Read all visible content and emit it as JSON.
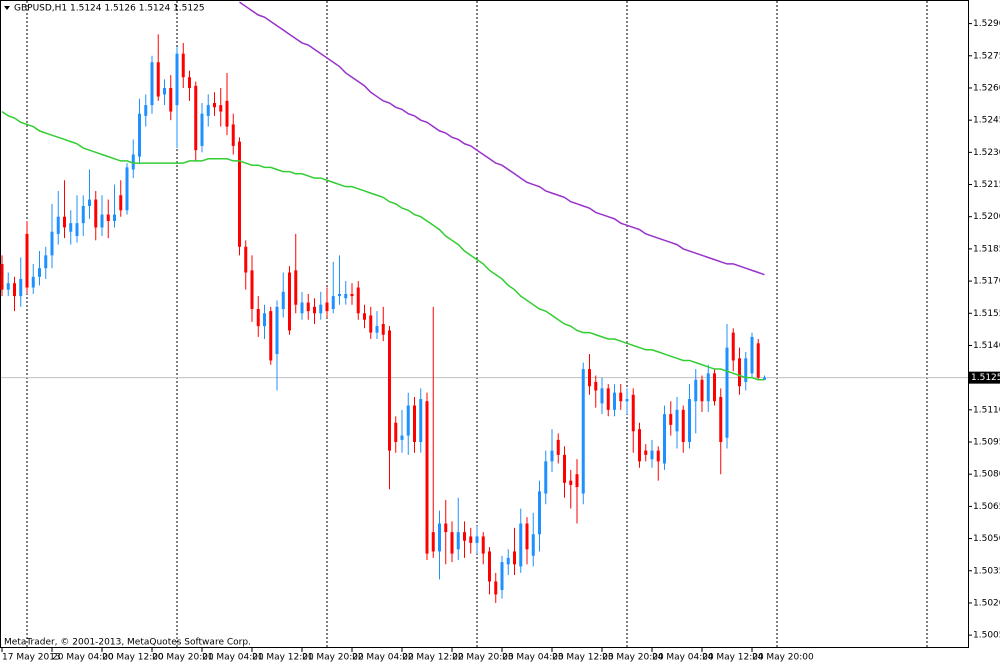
{
  "chart_data": {
    "type": "candlestick",
    "title": "GBPUSD,H1  1.5124 1.5126 1.5124 1.5125",
    "footer": "MetaTrader, © 2001-2013, MetaQuotes Software Corp.",
    "categories": [
      "17 May 2013",
      null,
      null,
      null,
      null,
      null,
      null,
      null,
      "20 May 04:00",
      null,
      null,
      null,
      null,
      null,
      null,
      null,
      "20 May 12:00",
      null,
      null,
      null,
      null,
      null,
      null,
      null,
      "20 May 20:00",
      null,
      null,
      null,
      null,
      null,
      null,
      null,
      "21 May 04:00",
      null,
      null,
      null,
      null,
      null,
      null,
      null,
      "21 May 12:00",
      null,
      null,
      null,
      null,
      null,
      null,
      null,
      "21 May 20:00",
      null,
      null,
      null,
      null,
      null,
      null,
      null,
      "22 May 04:00",
      null,
      null,
      null,
      null,
      null,
      null,
      null,
      "22 May 12:00",
      null,
      null,
      null,
      null,
      null,
      null,
      null,
      "22 May 20:00",
      null,
      null,
      null,
      null,
      null,
      null,
      null,
      "23 May 04:00",
      null,
      null,
      null,
      null,
      null,
      null,
      null,
      "23 May 12:00",
      null,
      null,
      null,
      null,
      null,
      null,
      null,
      "23 May 20:00",
      null,
      null,
      null,
      null,
      null,
      null,
      null,
      "24 May 04:00",
      null,
      null,
      null,
      null,
      null,
      null,
      null,
      "24 May 12:00",
      null,
      null,
      null,
      null,
      null,
      null,
      null,
      "24 May 20:00",
      null,
      null
    ],
    "open": [
      1.5178,
      1.5166,
      1.5169,
      1.5163,
      1.5192,
      1.5167,
      1.5172,
      1.5176,
      1.5182,
      1.5192,
      1.52,
      1.5193,
      1.5191,
      1.5197,
      1.5205,
      1.5208,
      1.5195,
      1.5201,
      1.5198,
      1.521,
      1.5203,
      1.5222,
      1.5228,
      1.5247,
      1.5252,
      1.5272,
      1.5257,
      1.526,
      1.5252,
      1.5276,
      1.5265,
      1.5261,
      1.5233,
      1.5247,
      1.5253,
      1.5252,
      1.5254,
      1.5243,
      1.5235,
      1.5186,
      1.5175,
      1.5157,
      1.5149,
      1.5156,
      1.5136,
      1.5157,
      1.5174,
      1.5175,
      1.5155,
      1.516,
      1.5158,
      1.5155,
      1.516,
      1.5157,
      1.5163,
      1.5162,
      1.5164,
      1.5167,
      1.5155,
      1.5154,
      1.5146,
      1.515,
      1.5147,
      1.5104,
      1.5096,
      1.5098,
      1.5112,
      1.5095,
      1.5114,
      1.5053,
      1.5044,
      1.5057,
      1.5053,
      1.5045,
      1.5053,
      1.5051,
      1.5048,
      1.5051,
      1.5044,
      1.503,
      1.5026,
      1.5038,
      1.5044,
      1.5037,
      1.5057,
      1.5042,
      1.5052,
      1.5071,
      1.5086,
      1.5096,
      1.5089,
      1.5077,
      1.508,
      1.5071,
      1.5129,
      1.5123,
      1.5113,
      1.512,
      1.511,
      1.5118,
      1.5114,
      1.5117,
      1.5101,
      1.5091,
      1.5087,
      1.5091,
      1.5085,
      1.5108,
      1.51,
      1.511,
      1.5095,
      1.5114,
      1.5124,
      1.5114,
      1.5127,
      1.5116,
      1.5097,
      1.5146,
      1.5134,
      1.5123,
      1.5127,
      1.5141,
      1.5124
    ],
    "high": [
      1.5182,
      1.5174,
      1.5172,
      1.5181,
      1.5198,
      1.5178,
      1.5184,
      1.5186,
      1.5206,
      1.5212,
      1.5217,
      1.5203,
      1.521,
      1.521,
      1.5222,
      1.5212,
      1.521,
      1.5208,
      1.5215,
      1.5217,
      1.5225,
      1.5236,
      1.5255,
      1.5257,
      1.5275,
      1.5285,
      1.5264,
      1.5266,
      1.5279,
      1.5281,
      1.5268,
      1.5263,
      1.5253,
      1.5257,
      1.5258,
      1.526,
      1.5267,
      1.5248,
      1.5237,
      1.5189,
      1.5182,
      1.5163,
      1.5159,
      1.5158,
      1.5161,
      1.5174,
      1.5177,
      1.5192,
      1.5165,
      1.5164,
      1.5162,
      1.5165,
      1.5167,
      1.5179,
      1.5182,
      1.517,
      1.5169,
      1.517,
      1.5159,
      1.5158,
      1.5156,
      1.5158,
      1.5149,
      1.5107,
      1.511,
      1.5118,
      1.5116,
      1.512,
      1.5118,
      1.5158,
      1.5063,
      1.5068,
      1.5058,
      1.5069,
      1.5058,
      1.5055,
      1.5056,
      1.5053,
      1.5046,
      1.5034,
      1.5042,
      1.5045,
      1.5055,
      1.5064,
      1.506,
      1.5062,
      1.5077,
      1.5091,
      1.5101,
      1.5099,
      1.5093,
      1.5082,
      1.5087,
      1.5132,
      1.5136,
      1.5126,
      1.5125,
      1.5122,
      1.5122,
      1.5122,
      1.512,
      1.512,
      1.5104,
      1.5094,
      1.5096,
      1.5093,
      1.5112,
      1.5114,
      1.5116,
      1.5112,
      1.5122,
      1.5129,
      1.5126,
      1.5131,
      1.5129,
      1.512,
      1.515,
      1.5148,
      1.5139,
      1.5137,
      1.5146,
      1.5143,
      1.5126
    ],
    "low": [
      1.5163,
      1.5163,
      1.5156,
      1.5158,
      1.5164,
      1.5164,
      1.5168,
      1.5171,
      1.5176,
      1.5187,
      1.519,
      1.5187,
      1.5188,
      1.5191,
      1.5199,
      1.5189,
      1.5191,
      1.519,
      1.5195,
      1.52,
      1.5201,
      1.5218,
      1.5225,
      1.5242,
      1.5248,
      1.5254,
      1.5252,
      1.5245,
      1.5232,
      1.526,
      1.5254,
      1.5226,
      1.523,
      1.5242,
      1.5247,
      1.5242,
      1.5238,
      1.5229,
      1.5182,
      1.5166,
      1.5151,
      1.5144,
      1.5143,
      1.5131,
      1.5119,
      1.5153,
      1.5145,
      1.5155,
      1.5152,
      1.5152,
      1.515,
      1.5152,
      1.5153,
      1.5155,
      1.5159,
      1.5159,
      1.5159,
      1.5152,
      1.5148,
      1.5143,
      1.5143,
      1.5142,
      1.5073,
      1.509,
      1.509,
      1.5089,
      1.509,
      1.509,
      1.504,
      1.5041,
      1.5031,
      1.5038,
      1.5039,
      1.504,
      1.5041,
      1.5043,
      1.5043,
      1.5038,
      1.5024,
      1.502,
      1.5022,
      1.5033,
      1.5033,
      1.5034,
      1.5038,
      1.5037,
      1.5044,
      1.5066,
      1.5081,
      1.5085,
      1.5069,
      1.5064,
      1.5057,
      1.5066,
      1.5117,
      1.5111,
      1.5108,
      1.5107,
      1.5107,
      1.511,
      1.5108,
      1.509,
      1.5083,
      1.5086,
      1.5083,
      1.5077,
      1.5082,
      1.5098,
      1.5092,
      1.509,
      1.5092,
      1.5099,
      1.5109,
      1.5109,
      1.5112,
      1.508,
      1.5092,
      1.5128,
      1.5117,
      1.5119,
      1.5125,
      1.5124,
      1.5124
    ],
    "close": [
      1.5166,
      1.5169,
      1.5163,
      1.5171,
      1.5167,
      1.5172,
      1.5176,
      1.5182,
      1.5193,
      1.52,
      1.5195,
      1.5197,
      1.5197,
      1.5205,
      1.5208,
      1.5195,
      1.5201,
      1.5198,
      1.5201,
      1.5203,
      1.5223,
      1.5229,
      1.5248,
      1.5252,
      1.5272,
      1.5256,
      1.526,
      1.5249,
      1.5276,
      1.5265,
      1.526,
      1.5231,
      1.5248,
      1.5252,
      1.5251,
      1.5249,
      1.5242,
      1.5233,
      1.5186,
      1.5174,
      1.5157,
      1.5149,
      1.5155,
      1.5133,
      1.5158,
      1.5165,
      1.5147,
      1.5159,
      1.516,
      1.5156,
      1.5155,
      1.5159,
      1.5156,
      1.5163,
      1.5164,
      1.5164,
      1.5163,
      1.5155,
      1.5152,
      1.5146,
      1.5149,
      1.5145,
      1.5091,
      1.5095,
      1.5098,
      1.5112,
      1.5095,
      1.5115,
      1.5043,
      1.5044,
      1.5057,
      1.5053,
      1.5043,
      1.5053,
      1.5049,
      1.5048,
      1.5051,
      1.5043,
      1.503,
      1.5024,
      1.5039,
      1.5041,
      1.5038,
      1.5057,
      1.5045,
      1.5052,
      1.5072,
      1.5086,
      1.5091,
      1.5089,
      1.5076,
      1.5075,
      1.5074,
      1.5129,
      1.5121,
      1.5119,
      1.512,
      1.511,
      1.5118,
      1.5114,
      1.5115,
      1.51,
      1.5086,
      1.5089,
      1.5091,
      1.5086,
      1.5108,
      1.5103,
      1.511,
      1.5095,
      1.5115,
      1.5124,
      1.5114,
      1.5127,
      1.5114,
      1.5095,
      1.5139,
      1.5133,
      1.5121,
      1.5134,
      1.5144,
      1.5125,
      1.5125
    ],
    "up_color": "#1e90ff",
    "down_color": "#ff0000",
    "moving_averages": [
      {
        "color": "#32cd32",
        "values": [
          1.5249,
          1.5247,
          1.5246,
          1.5244,
          1.5243,
          1.5242,
          1.524,
          1.5239,
          1.5238,
          1.5237,
          1.5236,
          1.5235,
          1.5234,
          1.5232,
          1.5231,
          1.523,
          1.5229,
          1.5228,
          1.5227,
          1.5226,
          1.5226,
          1.5225,
          1.5225,
          1.5225,
          1.5225,
          1.5225,
          1.5225,
          1.5225,
          1.5225,
          1.5225,
          1.5226,
          1.5226,
          1.5226,
          1.5227,
          1.5227,
          1.5227,
          1.5227,
          1.5226,
          1.5226,
          1.5225,
          1.5224,
          1.5224,
          1.5223,
          1.5223,
          1.5222,
          1.5221,
          1.5221,
          1.522,
          1.522,
          1.5219,
          1.5218,
          1.5218,
          1.5217,
          1.5216,
          1.5215,
          1.5214,
          1.5214,
          1.5213,
          1.5212,
          1.5211,
          1.521,
          1.5209,
          1.5207,
          1.5206,
          1.5204,
          1.5203,
          1.5201,
          1.52,
          1.5198,
          1.5196,
          1.5194,
          1.5191,
          1.5189,
          1.5187,
          1.5184,
          1.5182,
          1.518,
          1.5178,
          1.5175,
          1.5173,
          1.5171,
          1.5168,
          1.5166,
          1.5163,
          1.5161,
          1.5159,
          1.5157,
          1.5156,
          1.5154,
          1.5152,
          1.515,
          1.5149,
          1.5147,
          1.5146,
          1.5146,
          1.5145,
          1.5144,
          1.5143,
          1.5143,
          1.5142,
          1.5141,
          1.514,
          1.5139,
          1.5138,
          1.5138,
          1.5137,
          1.5136,
          1.5135,
          1.5134,
          1.5133,
          1.5133,
          1.5132,
          1.5131,
          1.513,
          1.5129,
          1.5129,
          1.5128,
          1.5127,
          1.5126,
          1.5125,
          1.5125,
          1.5124,
          1.5124
        ]
      },
      {
        "color": "#9932cc",
        "values": [
          null,
          null,
          null,
          null,
          null,
          null,
          null,
          null,
          null,
          null,
          null,
          null,
          null,
          null,
          null,
          null,
          null,
          null,
          null,
          null,
          null,
          null,
          null,
          null,
          null,
          null,
          null,
          null,
          null,
          null,
          null,
          null,
          null,
          null,
          null,
          null,
          null,
          null,
          1.53,
          1.5298,
          1.5296,
          1.5294,
          1.5293,
          1.5291,
          1.5289,
          1.5287,
          1.5285,
          1.5283,
          1.5281,
          1.528,
          1.5278,
          1.5276,
          1.5274,
          1.5272,
          1.527,
          1.5267,
          1.5265,
          1.5263,
          1.5261,
          1.5258,
          1.5256,
          1.5254,
          1.5253,
          1.5251,
          1.525,
          1.5248,
          1.5247,
          1.5245,
          1.5244,
          1.5242,
          1.524,
          1.5239,
          1.5237,
          1.5236,
          1.5234,
          1.5233,
          1.5231,
          1.5229,
          1.5227,
          1.5225,
          1.5224,
          1.5222,
          1.522,
          1.5218,
          1.5216,
          1.5215,
          1.5214,
          1.5212,
          1.5211,
          1.521,
          1.5209,
          1.5207,
          1.5206,
          1.5205,
          1.5204,
          1.5202,
          1.5201,
          1.52,
          1.5199,
          1.5197,
          1.5196,
          1.5195,
          1.5194,
          1.5192,
          1.5191,
          1.519,
          1.5189,
          1.5188,
          1.5187,
          1.5185,
          1.5184,
          1.5183,
          1.5182,
          1.5181,
          1.518,
          1.5179,
          1.5178,
          1.5178,
          1.5177,
          1.5176,
          1.5175,
          1.5174,
          1.5173
        ]
      }
    ],
    "bid": 1.5125,
    "ylim": [
      1.4999,
      1.5301
    ],
    "yticks": [
      {
        "value": 1.529,
        "label": "1.5290"
      },
      1.5275,
      {
        "value": 1.526,
        "label": "1.5260"
      },
      1.5245,
      {
        "value": 1.523,
        "label": "1.5230"
      },
      1.5215,
      {
        "value": 1.52,
        "label": "1.5200"
      },
      1.5185,
      {
        "value": 1.517,
        "label": "1.5170"
      },
      1.5155,
      {
        "value": 1.514,
        "label": "1.5140"
      },
      {
        "value": 1.511,
        "label": "1.5110"
      },
      1.5095,
      {
        "value": 1.508,
        "label": "1.5080"
      },
      1.5065,
      {
        "value": 1.505,
        "label": "1.5050"
      },
      1.5035,
      {
        "value": 1.502,
        "label": "1.5020"
      },
      1.5005
    ]
  }
}
